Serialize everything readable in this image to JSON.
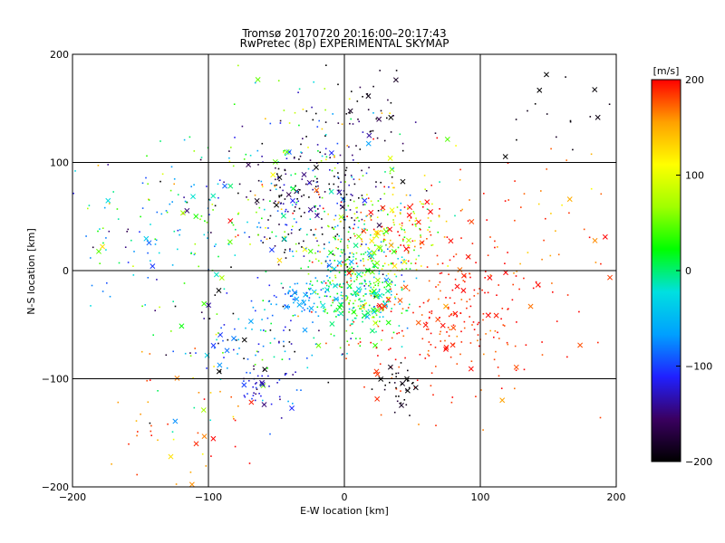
{
  "chart_data": {
    "type": "scatter",
    "title": "Tromsø 20170720 20:16:00–20:17:43",
    "subtitle": "RwPretec (8p) EXPERIMENTAL SKYMAP",
    "xlabel": "E-W location [km]",
    "ylabel": "N-S location [km]",
    "xlim": [
      -200,
      200
    ],
    "ylim": [
      -200,
      200
    ],
    "xticks": [
      -200,
      -100,
      0,
      100,
      200
    ],
    "yticks": [
      -200,
      -100,
      0,
      100,
      200
    ],
    "grid": true,
    "color_scale": {
      "label": "[m/s]",
      "min": -200,
      "max": 200,
      "ticks": [
        -200,
        -100,
        0,
        100,
        200
      ],
      "colors": [
        "#000000",
        "#3a0060",
        "#2020ff",
        "#00a0ff",
        "#00e0e0",
        "#00ff00",
        "#a0ff00",
        "#ffff00",
        "#ffa000",
        "#ff0000"
      ]
    },
    "clusters": [
      {
        "x": 10,
        "y": -25,
        "spread": 18,
        "count": 260,
        "v": 10,
        "vspread": 40
      },
      {
        "x": 5,
        "y": 15,
        "spread": 22,
        "count": 220,
        "v": 0,
        "vspread": 80
      },
      {
        "x": -25,
        "y": 70,
        "spread": 28,
        "count": 200,
        "v": -170,
        "vspread": 40
      },
      {
        "x": -55,
        "y": 55,
        "spread": 30,
        "count": 120,
        "v": 10,
        "vspread": 120
      },
      {
        "x": 40,
        "y": 40,
        "spread": 22,
        "count": 140,
        "v": 130,
        "vspread": 80
      },
      {
        "x": 75,
        "y": -40,
        "spread": 40,
        "count": 280,
        "v": 190,
        "vspread": 15
      },
      {
        "x": -140,
        "y": 40,
        "spread": 40,
        "count": 120,
        "v": -40,
        "vspread": 80
      },
      {
        "x": -70,
        "y": -70,
        "spread": 30,
        "count": 130,
        "v": -90,
        "vspread": 90
      },
      {
        "x": -35,
        "y": -30,
        "spread": 10,
        "count": 50,
        "v": -80,
        "vspread": 15
      },
      {
        "x": -60,
        "y": -110,
        "spread": 10,
        "count": 35,
        "v": -120,
        "vspread": 25
      },
      {
        "x": 40,
        "y": -110,
        "spread": 12,
        "count": 35,
        "v": -200,
        "vspread": 15
      },
      {
        "x": 20,
        "y": 150,
        "spread": 20,
        "count": 40,
        "v": -190,
        "vspread": 20
      },
      {
        "x": 165,
        "y": 140,
        "spread": 20,
        "count": 20,
        "v": -195,
        "vspread": 10
      },
      {
        "x": -10,
        "y": 120,
        "spread": 35,
        "count": 80,
        "v": 0,
        "vspread": 100
      },
      {
        "x": -120,
        "y": -150,
        "spread": 40,
        "count": 60,
        "v": 170,
        "vspread": 40
      },
      {
        "x": 130,
        "y": 40,
        "spread": 40,
        "count": 60,
        "v": 180,
        "vspread": 30
      }
    ]
  }
}
